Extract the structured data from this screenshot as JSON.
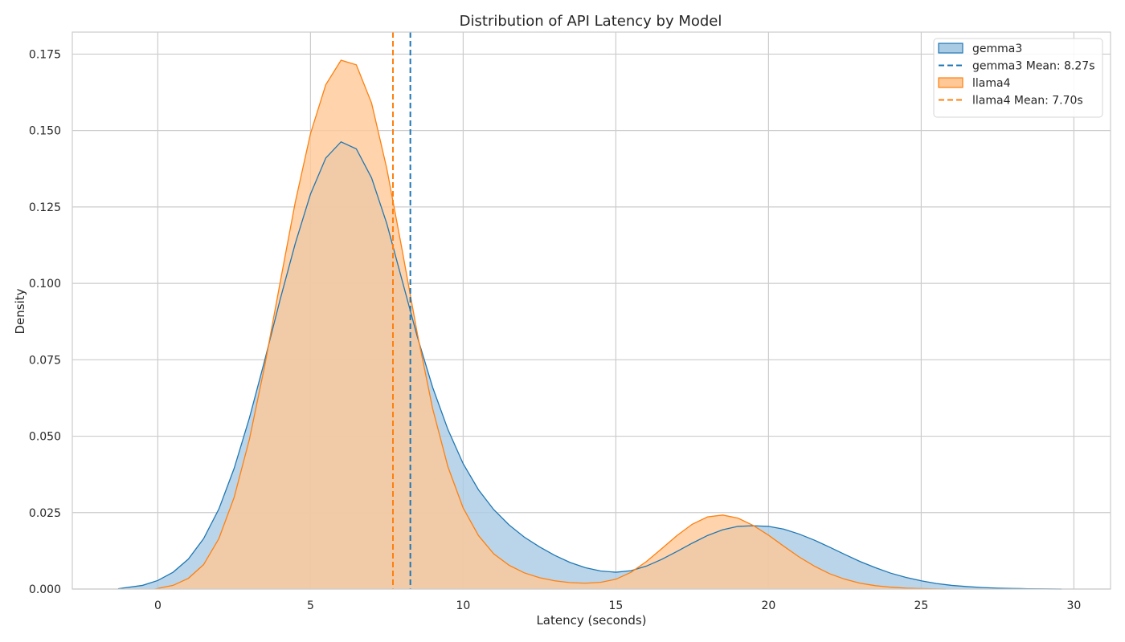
{
  "chart_data": {
    "type": "area",
    "title": "Distribution of API Latency by Model",
    "xlabel": "Latency (seconds)",
    "ylabel": "Density",
    "xlim": [
      -2.8,
      31.2
    ],
    "ylim": [
      0,
      0.1822
    ],
    "xticks": [
      0,
      5,
      10,
      15,
      20,
      25,
      30
    ],
    "xtick_labels": [
      "0",
      "5",
      "10",
      "15",
      "20",
      "25",
      "30"
    ],
    "yticks": [
      0,
      0.025,
      0.05,
      0.075,
      0.1,
      0.125,
      0.15,
      0.175
    ],
    "ytick_labels": [
      "0.000",
      "0.025",
      "0.050",
      "0.075",
      "0.100",
      "0.125",
      "0.150",
      "0.175"
    ],
    "grid": true,
    "legend_position": "top-right",
    "series": [
      {
        "name": "gemma3",
        "color": "#1f77b4",
        "fill": "#a9cbe4",
        "x": [
          -1.3,
          -0.5,
          0,
          0.5,
          1,
          1.5,
          2,
          2.5,
          3,
          3.5,
          4,
          4.5,
          5,
          5.5,
          6,
          6.5,
          7,
          7.5,
          8,
          8.5,
          9,
          9.5,
          10,
          10.5,
          11,
          11.5,
          12,
          12.5,
          13,
          13.5,
          14,
          14.5,
          15,
          15.5,
          16,
          16.5,
          17,
          17.5,
          18,
          18.5,
          19,
          19.5,
          20,
          20.5,
          21,
          21.5,
          22,
          22.5,
          23,
          23.5,
          24,
          24.5,
          25,
          25.5,
          26,
          26.5,
          27,
          27.5,
          28,
          28.5,
          29,
          29.6
        ],
        "values": [
          0.0001,
          0.0012,
          0.0028,
          0.0055,
          0.0098,
          0.0165,
          0.0262,
          0.0395,
          0.056,
          0.0748,
          0.0945,
          0.113,
          0.1292,
          0.141,
          0.1463,
          0.144,
          0.1345,
          0.1195,
          0.101,
          0.0825,
          0.066,
          0.0522,
          0.041,
          0.0325,
          0.026,
          0.021,
          0.017,
          0.0138,
          0.011,
          0.0087,
          0.007,
          0.0059,
          0.0055,
          0.006,
          0.0075,
          0.0097,
          0.0123,
          0.015,
          0.0175,
          0.0194,
          0.0205,
          0.0207,
          0.0205,
          0.0196,
          0.018,
          0.016,
          0.0137,
          0.0113,
          0.009,
          0.007,
          0.0052,
          0.0038,
          0.0027,
          0.0018,
          0.0012,
          0.0008,
          0.0005,
          0.0003,
          0.0002,
          0.0001,
          5e-05,
          0
        ]
      },
      {
        "name": "llama4",
        "color": "#ff7f0e",
        "fill": "#ffc896",
        "x": [
          -0.1,
          0.5,
          1,
          1.5,
          2,
          2.5,
          3,
          3.5,
          4,
          4.5,
          5,
          5.5,
          6,
          6.5,
          7,
          7.5,
          8,
          8.5,
          9,
          9.5,
          10,
          10.5,
          11,
          11.5,
          12,
          12.5,
          13,
          13.5,
          14,
          14.5,
          15,
          15.5,
          16,
          16.5,
          17,
          17.5,
          18,
          18.5,
          19,
          19.5,
          20,
          20.5,
          21,
          21.5,
          22,
          22.5,
          23,
          23.5,
          24,
          24.5,
          25,
          25.8
        ],
        "values": [
          0,
          0.0012,
          0.0035,
          0.008,
          0.0165,
          0.03,
          0.049,
          0.073,
          0.1,
          0.1265,
          0.149,
          0.165,
          0.173,
          0.1715,
          0.159,
          0.1375,
          0.111,
          0.0835,
          0.059,
          0.04,
          0.0265,
          0.0175,
          0.0115,
          0.0078,
          0.0053,
          0.0037,
          0.0027,
          0.0021,
          0.0019,
          0.0022,
          0.0032,
          0.0055,
          0.009,
          0.0132,
          0.0175,
          0.0212,
          0.0236,
          0.0242,
          0.0232,
          0.0208,
          0.0176,
          0.014,
          0.0105,
          0.0075,
          0.005,
          0.0032,
          0.0019,
          0.0011,
          0.0006,
          0.0003,
          0.00015,
          0
        ]
      }
    ],
    "mean_lines": [
      {
        "series": "gemma3",
        "label": "gemma3 Mean: 8.27s",
        "x": 8.27,
        "color": "#1f77b4"
      },
      {
        "series": "llama4",
        "label": "llama4 Mean: 7.70s",
        "x": 7.7,
        "color": "#ff7f0e"
      }
    ],
    "legend": [
      {
        "kind": "patch",
        "label": "gemma3",
        "color": "#1f77b4",
        "fill": "#a9cbe4"
      },
      {
        "kind": "dash",
        "label": "gemma3 Mean: 8.27s",
        "color": "#1f77b4"
      },
      {
        "kind": "patch",
        "label": "llama4",
        "color": "#ff7f0e",
        "fill": "#ffc896"
      },
      {
        "kind": "dash",
        "label": "llama4 Mean: 7.70s",
        "color": "#ff7f0e"
      }
    ]
  }
}
